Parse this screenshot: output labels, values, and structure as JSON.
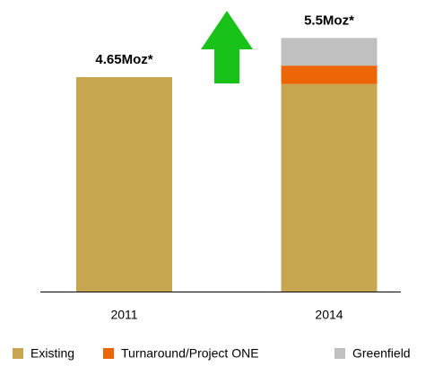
{
  "chart_data": {
    "type": "stacked-bar",
    "categories": [
      "2011",
      "2014"
    ],
    "series": [
      {
        "name": "Existing",
        "color": "#c8a54f",
        "values": [
          4.65,
          4.5
        ]
      },
      {
        "name": "Turnaround/Project ONE",
        "color": "#ec6608",
        "values": [
          null,
          0.4
        ]
      },
      {
        "name": "Greenfield",
        "color": "#c0c0c0",
        "values": [
          null,
          0.6
        ]
      }
    ],
    "totals": {
      "values": [
        4.65,
        5.5
      ],
      "value_labels": [
        "4.65Moz*",
        "5.5Moz*"
      ]
    }
  }
}
